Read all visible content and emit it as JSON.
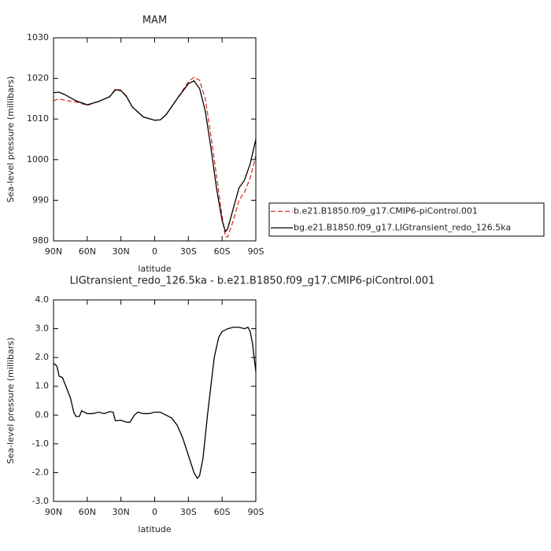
{
  "chart_data": [
    {
      "type": "line",
      "title": "MAM",
      "xlabel": "latitude",
      "ylabel": "Sea-level pressure (millibars)",
      "x": [
        90,
        85,
        80,
        70,
        60,
        50,
        40,
        35,
        30,
        25,
        20,
        10,
        0,
        -5,
        -10,
        -20,
        -30,
        -35,
        -40,
        -45,
        -50,
        -55,
        -60,
        -63,
        -65,
        -70,
        -75,
        -80,
        -85,
        -90
      ],
      "xlim": [
        90,
        -90
      ],
      "xticks": [
        {
          "value": 90,
          "label": "90N"
        },
        {
          "value": 60,
          "label": "60N"
        },
        {
          "value": 30,
          "label": "30N"
        },
        0,
        {
          "value": -30,
          "label": "30S"
        },
        {
          "value": -60,
          "label": "60S"
        },
        {
          "value": -90,
          "label": "90S"
        }
      ],
      "ylim": [
        980,
        1030
      ],
      "yticks": [
        980,
        990,
        1000,
        1010,
        1020,
        1030
      ],
      "legend": "right",
      "series": [
        {
          "name": "b.e21.B1850.f09_g17.CMIP6-piControl.001",
          "color": "#e0302a",
          "dash": true,
          "values": [
            1014.5,
            1015,
            1014.6,
            1014.2,
            1013.4,
            1014.3,
            1015.5,
            1017.4,
            1017.1,
            1015.6,
            1013,
            1010.5,
            1009.7,
            1009.8,
            1011,
            1015,
            1019.2,
            1020.3,
            1019.5,
            1015,
            1006,
            996,
            986,
            981,
            981,
            985,
            990,
            992,
            995.5,
            1001
          ]
        },
        {
          "name": "bg.e21.B1850.f09_g17.LIGtransient_redo_126.5ka",
          "color": "#000000",
          "dash": false,
          "values": [
            1016.5,
            1016.6,
            1016,
            1014.5,
            1013.5,
            1014.3,
            1015.5,
            1017.2,
            1017,
            1015.5,
            1013,
            1010.5,
            1009.7,
            1009.8,
            1011,
            1015,
            1018.7,
            1019.4,
            1017.5,
            1012,
            1003,
            993,
            985,
            982.3,
            983,
            988,
            993,
            995,
            999,
            1005
          ]
        }
      ]
    },
    {
      "type": "line",
      "title": "LIGtransient_redo_126.5ka - b.e21.B1850.f09_g17.CMIP6-piControl.001",
      "xlabel": "latitude",
      "ylabel": "Sea-level pressure (millibars)",
      "x": [
        90,
        87,
        85,
        82,
        78,
        75,
        72,
        70,
        67,
        65,
        60,
        55,
        50,
        45,
        40,
        37,
        35,
        30,
        25,
        22,
        18,
        15,
        10,
        5,
        0,
        -5,
        -10,
        -15,
        -20,
        -25,
        -30,
        -35,
        -38,
        -40,
        -43,
        -47,
        -50,
        -53,
        -57,
        -60,
        -65,
        -70,
        -75,
        -80,
        -83,
        -85,
        -87,
        -90
      ],
      "xlim": [
        90,
        -90
      ],
      "xticks": [
        {
          "value": 90,
          "label": "90N"
        },
        {
          "value": 60,
          "label": "60N"
        },
        {
          "value": 30,
          "label": "30N"
        },
        0,
        {
          "value": -30,
          "label": "30S"
        },
        {
          "value": -60,
          "label": "60S"
        },
        {
          "value": -90,
          "label": "90S"
        }
      ],
      "ylim": [
        -3,
        4
      ],
      "yticks": [
        {
          "value": -3,
          "label": "-3.0"
        },
        {
          "value": -2,
          "label": "-2.0"
        },
        {
          "value": -1,
          "label": "-1.0"
        },
        {
          "value": 0,
          "label": "0.0"
        },
        {
          "value": 1,
          "label": "1.0"
        },
        {
          "value": 2,
          "label": "2.0"
        },
        {
          "value": 3,
          "label": "3.0"
        },
        {
          "value": 4,
          "label": "4.0"
        }
      ],
      "series": [
        {
          "color": "#000000",
          "dash": false,
          "values": [
            1.8,
            1.7,
            1.35,
            1.3,
            0.9,
            0.6,
            0.1,
            -0.05,
            -0.05,
            0.15,
            0.05,
            0.05,
            0.1,
            0.05,
            0.12,
            0.1,
            -0.2,
            -0.18,
            -0.25,
            -0.25,
            0,
            0.1,
            0.05,
            0.05,
            0.1,
            0.1,
            0,
            -0.1,
            -0.35,
            -0.8,
            -1.4,
            -2,
            -2.2,
            -2.1,
            -1.5,
            0,
            1,
            2,
            2.7,
            2.9,
            3,
            3.05,
            3.05,
            3,
            3.05,
            2.9,
            2.5,
            1.5
          ]
        }
      ]
    }
  ]
}
